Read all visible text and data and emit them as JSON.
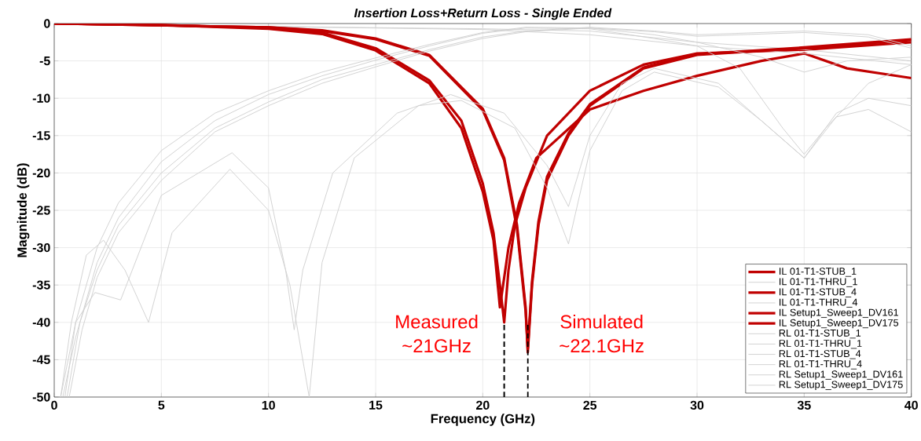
{
  "chart_data": {
    "type": "line",
    "title": "Insertion Loss+Return Loss - Single Ended",
    "xlabel": "Frequency (GHz)",
    "ylabel": "Magnitude (dB)",
    "xlim": [
      0,
      40
    ],
    "ylim": [
      -50,
      0
    ],
    "xticks": [
      0,
      5,
      10,
      15,
      20,
      25,
      30,
      35,
      40
    ],
    "yticks": [
      -50,
      -45,
      -40,
      -35,
      -30,
      -25,
      -20,
      -15,
      -10,
      -5,
      0
    ],
    "grid": true,
    "legend": "bottom right",
    "line_style": "solid",
    "marker": "none",
    "series": [
      {
        "name": "IL 01-T1-STUB_1",
        "color": "#c00000",
        "x": [
          0,
          5,
          10,
          12.5,
          15,
          17.5,
          19,
          20,
          20.5,
          20.8,
          21,
          21.2,
          21.5,
          22,
          23,
          25,
          27.5,
          30,
          35,
          40
        ],
        "values": [
          0,
          -0.2,
          -0.6,
          -1.2,
          -3.3,
          -7.6,
          -13,
          -21.4,
          -28,
          -35,
          -40,
          -33,
          -27,
          -22,
          -15,
          -9,
          -5.5,
          -4,
          -3.5,
          -2.5
        ]
      },
      {
        "name": "IL 01-T1-THRU_1",
        "color": "#d0d0d0",
        "x": [
          0,
          10,
          20,
          25,
          30,
          35,
          40
        ],
        "values": [
          0,
          -0.4,
          -0.7,
          -1,
          -2.5,
          -3.5,
          -5
        ]
      },
      {
        "name": "IL 01-T1-STUB_4",
        "color": "#c00000",
        "x": [
          0,
          5,
          10,
          12.5,
          15,
          17.5,
          19,
          20,
          20.5,
          20.8,
          21.2,
          21.7,
          22.5,
          25,
          27.5,
          30,
          33,
          35,
          37,
          40
        ],
        "values": [
          0,
          -0.2,
          -0.7,
          -1.4,
          -3.6,
          -8,
          -14,
          -22.5,
          -29,
          -38,
          -30,
          -24,
          -18,
          -11.5,
          -9,
          -7,
          -5,
          -4,
          -6,
          -7.3
        ]
      },
      {
        "name": "IL 01-T1-THRU_4",
        "color": "#d0d0d0",
        "x": [
          0,
          10,
          20,
          25,
          30,
          35,
          40
        ],
        "values": [
          0,
          -0.4,
          -0.8,
          -1.5,
          -3,
          -4,
          -5.5
        ]
      },
      {
        "name": "IL Setup1_Sweep1_DV161",
        "color": "#c00000",
        "x": [
          0,
          10,
          12.5,
          15,
          17.5,
          20,
          21,
          21.6,
          22,
          22.1,
          22.3,
          22.6,
          23,
          24,
          25,
          27.5,
          30,
          35,
          40
        ],
        "values": [
          0,
          -0.5,
          -0.9,
          -2,
          -4.2,
          -11.4,
          -18,
          -27,
          -38,
          -44,
          -35,
          -27,
          -21,
          -15,
          -11,
          -6,
          -4.2,
          -3.3,
          -2.2
        ]
      },
      {
        "name": "IL Setup1_Sweep1_DV175",
        "color": "#c00000",
        "x": [
          0,
          10,
          12.5,
          15,
          17.5,
          20,
          21,
          21.6,
          22,
          22.1,
          22.3,
          22.6,
          23,
          24,
          25,
          27.5,
          30,
          35,
          40
        ],
        "values": [
          0,
          -0.5,
          -1,
          -2.1,
          -4.3,
          -11.6,
          -18.3,
          -27.5,
          -38.5,
          -43.5,
          -34.5,
          -26.5,
          -20.5,
          -14.7,
          -10.8,
          -5.9,
          -4.1,
          -3.2,
          -2.1
        ]
      },
      {
        "name": "RL 01-T1-STUB_1",
        "color": "#d0d0d0",
        "x": [
          0.3,
          1,
          1.9,
          3.1,
          5,
          8.3,
          10,
          10.8,
          11.2,
          11.6,
          13,
          16,
          18.5,
          21,
          23,
          24,
          25,
          26.5,
          28,
          31,
          33,
          35,
          36.5,
          38,
          40
        ],
        "values": [
          -50,
          -40,
          -36,
          -37,
          -23,
          -17.3,
          -22,
          -33,
          -41,
          -33,
          -20,
          -12,
          -9.5,
          -12,
          -19,
          -24.5,
          -15,
          -8,
          -6,
          -8,
          -13,
          -18,
          -12,
          -10,
          -11
        ]
      },
      {
        "name": "RL 01-T1-THRU_1",
        "color": "#d0d0d0",
        "x": [
          0.5,
          1,
          2,
          3,
          5,
          7.5,
          10,
          12.5,
          15,
          17.5,
          20,
          22,
          25,
          28,
          30,
          33,
          35,
          37,
          40
        ],
        "values": [
          -50,
          -40,
          -30,
          -24,
          -17,
          -12,
          -9,
          -6.5,
          -4.6,
          -2.8,
          -1.2,
          -0.5,
          -0.6,
          -1.5,
          -2.5,
          -4.5,
          -6.5,
          -5,
          -4.5
        ]
      },
      {
        "name": "RL 01-T1-STUB_4",
        "color": "#d0d0d0",
        "x": [
          0.3,
          0.8,
          1.5,
          2.3,
          3.3,
          4.4,
          5.5,
          8.2,
          10,
          11,
          11.9,
          12.5,
          14,
          17,
          19,
          21.5,
          23,
          24,
          25,
          26.5,
          28,
          31,
          33,
          35,
          36.5,
          38,
          40
        ],
        "values": [
          -50,
          -40,
          -31,
          -29,
          -33,
          -40,
          -28,
          -19.5,
          -25,
          -35,
          -50,
          -32,
          -18,
          -11,
          -10.3,
          -14,
          -22,
          -29.5,
          -17,
          -9,
          -6.5,
          -8.5,
          -13,
          -18,
          -12.5,
          -11.5,
          -14.5
        ]
      },
      {
        "name": "RL 01-T1-THRU_4",
        "color": "#d0d0d0",
        "x": [
          0.4,
          1,
          2,
          3,
          5,
          7.5,
          10,
          12.5,
          15,
          17.5,
          20,
          22,
          25,
          28,
          30,
          32,
          34,
          35,
          36,
          38,
          40
        ],
        "values": [
          -50,
          -42,
          -32,
          -26,
          -18.5,
          -13,
          -9.5,
          -7,
          -4.9,
          -3,
          -1.3,
          -0.6,
          -0.7,
          -2,
          -3,
          -6,
          -14,
          -17.5,
          -14,
          -8,
          -5.5
        ]
      },
      {
        "name": "RL Setup1_Sweep1_DV161",
        "color": "#d0d0d0",
        "x": [
          0.6,
          1.2,
          2,
          3,
          5,
          7.5,
          10,
          12.5,
          15,
          17.5,
          20,
          22,
          25,
          28,
          30,
          35,
          38,
          40
        ],
        "values": [
          -50,
          -40,
          -33,
          -27,
          -20,
          -14,
          -10.5,
          -7.5,
          -5.5,
          -3.5,
          -1.8,
          -1,
          -0.5,
          -1,
          -1.5,
          -1,
          -1.5,
          -3
        ]
      },
      {
        "name": "RL Setup1_Sweep1_DV175",
        "color": "#d0d0d0",
        "x": [
          0.7,
          1.3,
          2,
          3,
          5,
          7.5,
          10,
          12.5,
          15,
          17.5,
          20,
          22,
          25,
          28,
          30,
          35,
          38,
          40
        ],
        "values": [
          -50,
          -41,
          -34,
          -28,
          -21,
          -14.5,
          -11,
          -8,
          -5.8,
          -3.7,
          -2,
          -1.1,
          -0.6,
          -1.1,
          -1.7,
          -1.2,
          -1.8,
          -3.3
        ]
      }
    ],
    "ref_lines": [
      {
        "axis": "x",
        "value": 21,
        "color": "#000000",
        "line_style": "dashed"
      },
      {
        "axis": "x",
        "value": 22.1,
        "color": "#000000",
        "line_style": "dashed"
      }
    ],
    "annotations": [
      "Measured ~21GHz",
      "Simulated ~22.1GHz"
    ]
  }
}
